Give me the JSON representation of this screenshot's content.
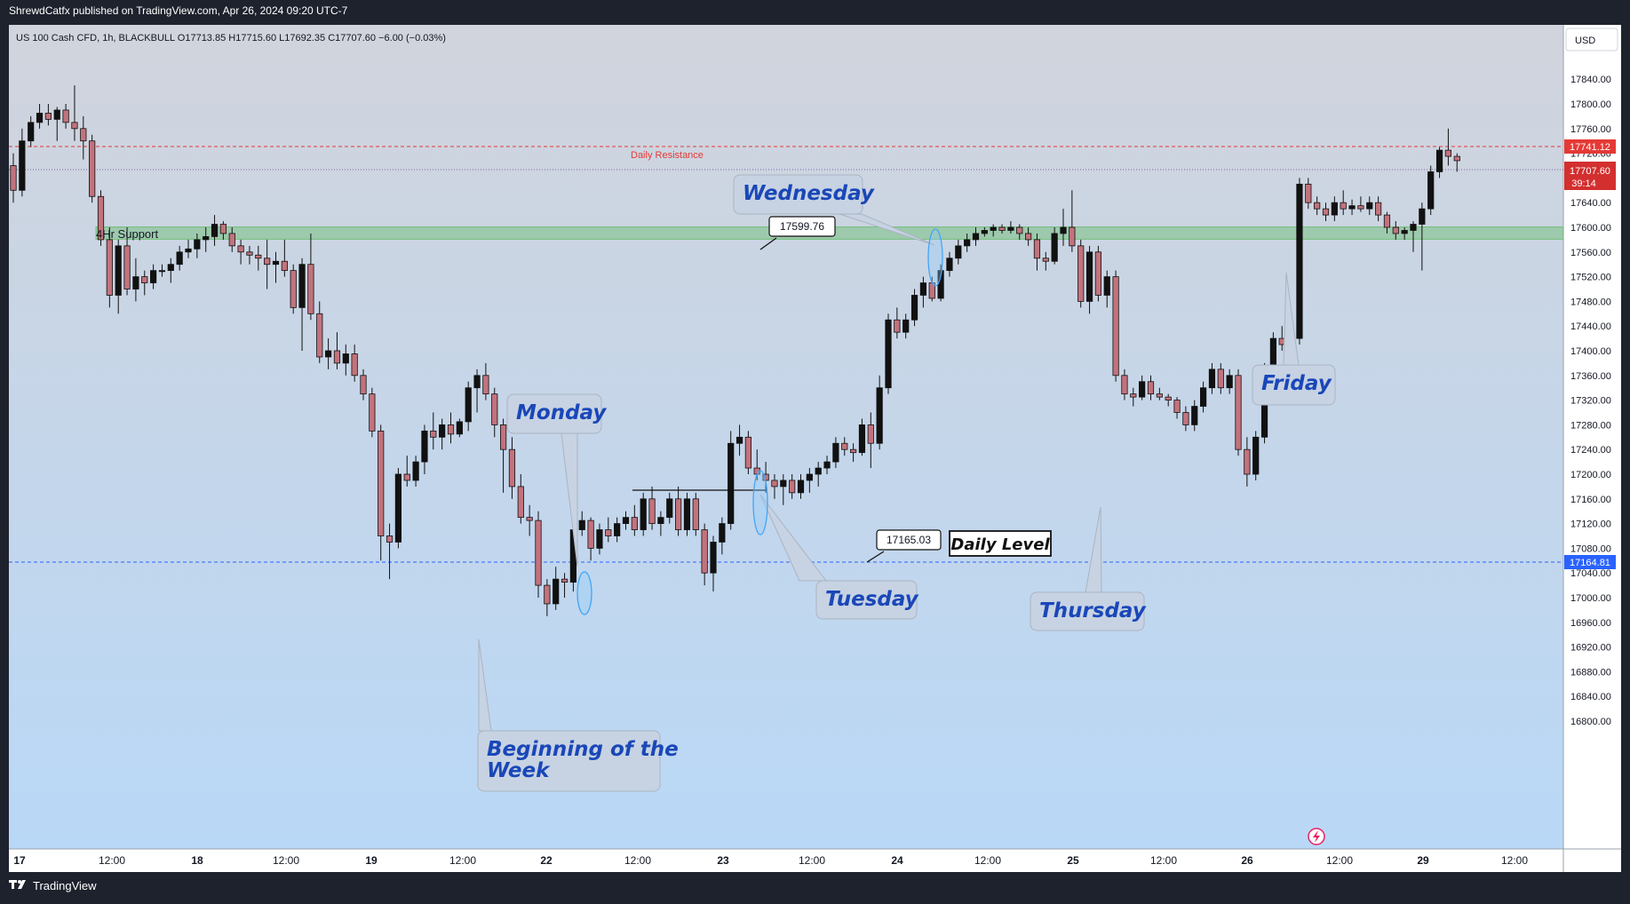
{
  "header": {
    "published_line": "ShrewdCatfx published on TradingView.com, Apr 26, 2024 09:20 UTC-7",
    "symbol_line": "US 100 Cash CFD, 1h, BLACKBULL  O17713.85  H17715.60  L17692.35  C17707.60  −6.00 (−0.03%)"
  },
  "footer": {
    "brand": "TradingView",
    "logo_icon": "tradingview-logo-icon"
  },
  "price_axis": {
    "currency": "USD",
    "ticks": [
      "17840.00",
      "17800.00",
      "17760.00",
      "17720.00",
      "17680.00",
      "17640.00",
      "17600.00",
      "17560.00",
      "17520.00",
      "17480.00",
      "17440.00",
      "17400.00",
      "17360.00",
      "17320.00",
      "17280.00",
      "17240.00",
      "17200.00",
      "17160.00",
      "17120.00",
      "17080.00",
      "17040.00",
      "17000.00",
      "16960.00",
      "16920.00",
      "16880.00",
      "16840.00",
      "16800.00"
    ],
    "labels": {
      "resistance": "17741.12",
      "last_price": "17707.60",
      "countdown": "39:14",
      "daily_level": "17164.81"
    }
  },
  "time_axis": {
    "ticks": [
      "17",
      "12:00",
      "18",
      "12:00",
      "19",
      "12:00",
      "22",
      "12:00",
      "23",
      "12:00",
      "24",
      "12:00",
      "25",
      "12:00",
      "26",
      "12:00",
      "29",
      "12:00"
    ]
  },
  "annotations": {
    "daily_resistance": "Daily Resistance",
    "support_4hr": "4Hr Support",
    "price_tag_1": "17599.76",
    "price_tag_2": "17165.03",
    "daily_level": "Daily Level",
    "monday": "Monday",
    "beginning_week_line1": "Beginning of the",
    "beginning_week_line2": "Week",
    "tuesday": "Tuesday",
    "wednesday": "Wednesday",
    "thursday": "Thursday",
    "friday": "Friday"
  },
  "colors": {
    "up": "#111111",
    "down": "#c2737d",
    "resistance": "#e53935",
    "daily_level": "#2962ff",
    "support_zone": "#66bb6a",
    "callout_text": "#1a47b8",
    "callout_bg": "#c7d3e3"
  },
  "chart_data": {
    "type": "candlestick",
    "symbol": "US 100 Cash CFD",
    "interval": "1h",
    "ylim": [
      16780,
      17880
    ],
    "y_unit": "price",
    "horizontal_lines": [
      {
        "name": "Daily Resistance",
        "value": 17741.12,
        "style": "dashed"
      },
      {
        "name": "Daily Level",
        "value": 17164.81,
        "style": "dashed"
      }
    ],
    "zones": [
      {
        "name": "4Hr Support",
        "from": 17585,
        "to": 17605
      }
    ],
    "candles": [
      [
        17700,
        17720,
        17640,
        17660
      ],
      [
        17660,
        17760,
        17650,
        17740
      ],
      [
        17740,
        17780,
        17730,
        17770
      ],
      [
        17770,
        17800,
        17760,
        17785
      ],
      [
        17785,
        17800,
        17765,
        17775
      ],
      [
        17775,
        17795,
        17740,
        17790
      ],
      [
        17790,
        17800,
        17760,
        17770
      ],
      [
        17770,
        17830,
        17740,
        17760
      ],
      [
        17760,
        17780,
        17710,
        17740
      ],
      [
        17740,
        17750,
        17640,
        17650
      ],
      [
        17650,
        17660,
        17570,
        17580
      ],
      [
        17580,
        17600,
        17470,
        17490
      ],
      [
        17490,
        17580,
        17460,
        17570
      ],
      [
        17570,
        17600,
        17490,
        17500
      ],
      [
        17500,
        17550,
        17480,
        17520
      ],
      [
        17520,
        17530,
        17490,
        17510
      ],
      [
        17510,
        17540,
        17500,
        17530
      ],
      [
        17530,
        17540,
        17520,
        17530
      ],
      [
        17530,
        17550,
        17510,
        17540
      ],
      [
        17540,
        17570,
        17530,
        17560
      ],
      [
        17560,
        17580,
        17550,
        17565
      ],
      [
        17565,
        17590,
        17550,
        17580
      ],
      [
        17580,
        17600,
        17560,
        17585
      ],
      [
        17585,
        17620,
        17570,
        17605
      ],
      [
        17605,
        17610,
        17580,
        17590
      ],
      [
        17590,
        17600,
        17560,
        17570
      ],
      [
        17570,
        17580,
        17540,
        17560
      ],
      [
        17560,
        17570,
        17540,
        17555
      ],
      [
        17555,
        17570,
        17530,
        17550
      ],
      [
        17550,
        17580,
        17500,
        17540
      ],
      [
        17540,
        17560,
        17510,
        17545
      ],
      [
        17545,
        17580,
        17520,
        17530
      ],
      [
        17530,
        17540,
        17460,
        17470
      ],
      [
        17470,
        17550,
        17400,
        17540
      ],
      [
        17540,
        17590,
        17450,
        17460
      ],
      [
        17460,
        17480,
        17380,
        17390
      ],
      [
        17390,
        17420,
        17370,
        17400
      ],
      [
        17400,
        17430,
        17370,
        17380
      ],
      [
        17380,
        17410,
        17360,
        17395
      ],
      [
        17395,
        17410,
        17350,
        17360
      ],
      [
        17360,
        17370,
        17320,
        17330
      ],
      [
        17330,
        17340,
        17260,
        17270
      ],
      [
        17270,
        17280,
        17060,
        17100
      ],
      [
        17100,
        17120,
        17030,
        17090
      ],
      [
        17090,
        17210,
        17080,
        17200
      ],
      [
        17200,
        17230,
        17180,
        17190
      ],
      [
        17190,
        17230,
        17180,
        17220
      ],
      [
        17220,
        17280,
        17200,
        17270
      ],
      [
        17270,
        17300,
        17240,
        17260
      ],
      [
        17260,
        17290,
        17240,
        17280
      ],
      [
        17280,
        17300,
        17250,
        17265
      ],
      [
        17265,
        17290,
        17260,
        17285
      ],
      [
        17285,
        17350,
        17270,
        17340
      ],
      [
        17340,
        17370,
        17300,
        17360
      ],
      [
        17360,
        17380,
        17320,
        17330
      ],
      [
        17330,
        17340,
        17260,
        17280
      ],
      [
        17280,
        17290,
        17170,
        17240
      ],
      [
        17240,
        17260,
        17160,
        17180
      ],
      [
        17180,
        17200,
        17120,
        17130
      ],
      [
        17130,
        17150,
        17100,
        17125
      ],
      [
        17125,
        17140,
        17000,
        17020
      ],
      [
        17020,
        17030,
        16970,
        16990
      ],
      [
        16990,
        17050,
        16980,
        17030
      ],
      [
        17030,
        17040,
        17000,
        17025
      ],
      [
        17025,
        17120,
        17010,
        17110
      ],
      [
        17110,
        17140,
        17100,
        17125
      ],
      [
        17125,
        17130,
        17060,
        17080
      ],
      [
        17080,
        17120,
        17070,
        17110
      ],
      [
        17110,
        17130,
        17090,
        17100
      ],
      [
        17100,
        17130,
        17090,
        17120
      ],
      [
        17120,
        17140,
        17110,
        17130
      ],
      [
        17130,
        17150,
        17100,
        17110
      ],
      [
        17110,
        17170,
        17100,
        17160
      ],
      [
        17160,
        17180,
        17110,
        17120
      ],
      [
        17120,
        17140,
        17100,
        17130
      ],
      [
        17130,
        17170,
        17120,
        17160
      ],
      [
        17160,
        17180,
        17100,
        17110
      ],
      [
        17110,
        17170,
        17100,
        17160
      ],
      [
        17160,
        17170,
        17100,
        17110
      ],
      [
        17110,
        17120,
        17020,
        17040
      ],
      [
        17040,
        17100,
        17010,
        17090
      ],
      [
        17090,
        17130,
        17070,
        17120
      ],
      [
        17120,
        17270,
        17110,
        17250
      ],
      [
        17250,
        17280,
        17230,
        17260
      ],
      [
        17260,
        17270,
        17200,
        17210
      ],
      [
        17210,
        17240,
        17190,
        17200
      ],
      [
        17200,
        17220,
        17170,
        17190
      ],
      [
        17190,
        17200,
        17160,
        17180
      ],
      [
        17180,
        17200,
        17150,
        17190
      ],
      [
        17190,
        17200,
        17160,
        17170
      ],
      [
        17170,
        17200,
        17160,
        17190
      ],
      [
        17190,
        17210,
        17170,
        17200
      ],
      [
        17200,
        17220,
        17180,
        17210
      ],
      [
        17210,
        17230,
        17200,
        17220
      ],
      [
        17220,
        17260,
        17210,
        17250
      ],
      [
        17250,
        17260,
        17230,
        17240
      ],
      [
        17240,
        17250,
        17220,
        17235
      ],
      [
        17235,
        17290,
        17230,
        17280
      ],
      [
        17280,
        17300,
        17210,
        17250
      ],
      [
        17250,
        17360,
        17240,
        17340
      ],
      [
        17340,
        17460,
        17330,
        17450
      ],
      [
        17450,
        17470,
        17420,
        17430
      ],
      [
        17430,
        17460,
        17420,
        17450
      ],
      [
        17450,
        17500,
        17440,
        17490
      ],
      [
        17490,
        17520,
        17470,
        17510
      ],
      [
        17510,
        17520,
        17480,
        17485
      ],
      [
        17485,
        17540,
        17480,
        17530
      ],
      [
        17530,
        17560,
        17520,
        17550
      ],
      [
        17550,
        17580,
        17540,
        17570
      ],
      [
        17570,
        17590,
        17560,
        17580
      ],
      [
        17580,
        17600,
        17570,
        17590
      ],
      [
        17590,
        17600,
        17585,
        17595
      ],
      [
        17595,
        17605,
        17585,
        17600
      ],
      [
        17600,
        17605,
        17590,
        17595
      ],
      [
        17595,
        17610,
        17590,
        17600
      ],
      [
        17600,
        17605,
        17580,
        17590
      ],
      [
        17590,
        17600,
        17570,
        17580
      ],
      [
        17580,
        17590,
        17530,
        17550
      ],
      [
        17550,
        17560,
        17530,
        17545
      ],
      [
        17545,
        17600,
        17540,
        17590
      ],
      [
        17590,
        17630,
        17570,
        17600
      ],
      [
        17600,
        17660,
        17560,
        17570
      ],
      [
        17570,
        17580,
        17470,
        17480
      ],
      [
        17480,
        17570,
        17460,
        17560
      ],
      [
        17560,
        17570,
        17480,
        17490
      ],
      [
        17490,
        17530,
        17470,
        17520
      ],
      [
        17520,
        17530,
        17350,
        17360
      ],
      [
        17360,
        17370,
        17320,
        17330
      ],
      [
        17330,
        17340,
        17310,
        17325
      ],
      [
        17325,
        17360,
        17320,
        17350
      ],
      [
        17350,
        17360,
        17320,
        17330
      ],
      [
        17330,
        17340,
        17320,
        17325
      ],
      [
        17325,
        17330,
        17310,
        17320
      ],
      [
        17320,
        17325,
        17290,
        17300
      ],
      [
        17300,
        17310,
        17270,
        17280
      ],
      [
        17280,
        17320,
        17270,
        17310
      ],
      [
        17310,
        17350,
        17300,
        17340
      ],
      [
        17340,
        17380,
        17330,
        17370
      ],
      [
        17370,
        17380,
        17330,
        17340
      ],
      [
        17340,
        17370,
        17330,
        17360
      ],
      [
        17360,
        17370,
        17230,
        17240
      ],
      [
        17240,
        17260,
        17180,
        17200
      ],
      [
        17200,
        17270,
        17190,
        17260
      ],
      [
        17260,
        17380,
        17250,
        17370
      ],
      [
        17370,
        17430,
        17340,
        17420
      ],
      [
        17420,
        17440,
        17400,
        17410
      ],
      [
        17410,
        17430,
        17390,
        17420
      ],
      [
        17420,
        17680,
        17410,
        17670
      ],
      [
        17670,
        17680,
        17630,
        17640
      ],
      [
        17640,
        17650,
        17620,
        17630
      ],
      [
        17630,
        17640,
        17610,
        17620
      ],
      [
        17620,
        17650,
        17610,
        17640
      ],
      [
        17640,
        17660,
        17620,
        17630
      ],
      [
        17630,
        17645,
        17620,
        17635
      ],
      [
        17635,
        17650,
        17625,
        17630
      ],
      [
        17630,
        17650,
        17620,
        17640
      ],
      [
        17640,
        17650,
        17610,
        17620
      ],
      [
        17620,
        17625,
        17590,
        17600
      ],
      [
        17600,
        17610,
        17580,
        17590
      ],
      [
        17590,
        17600,
        17580,
        17595
      ],
      [
        17595,
        17610,
        17560,
        17605
      ],
      [
        17605,
        17640,
        17530,
        17630
      ],
      [
        17630,
        17700,
        17620,
        17690
      ],
      [
        17690,
        17730,
        17680,
        17725
      ],
      [
        17725,
        17760,
        17700,
        17715
      ],
      [
        17715,
        17720,
        17690,
        17708
      ]
    ]
  }
}
